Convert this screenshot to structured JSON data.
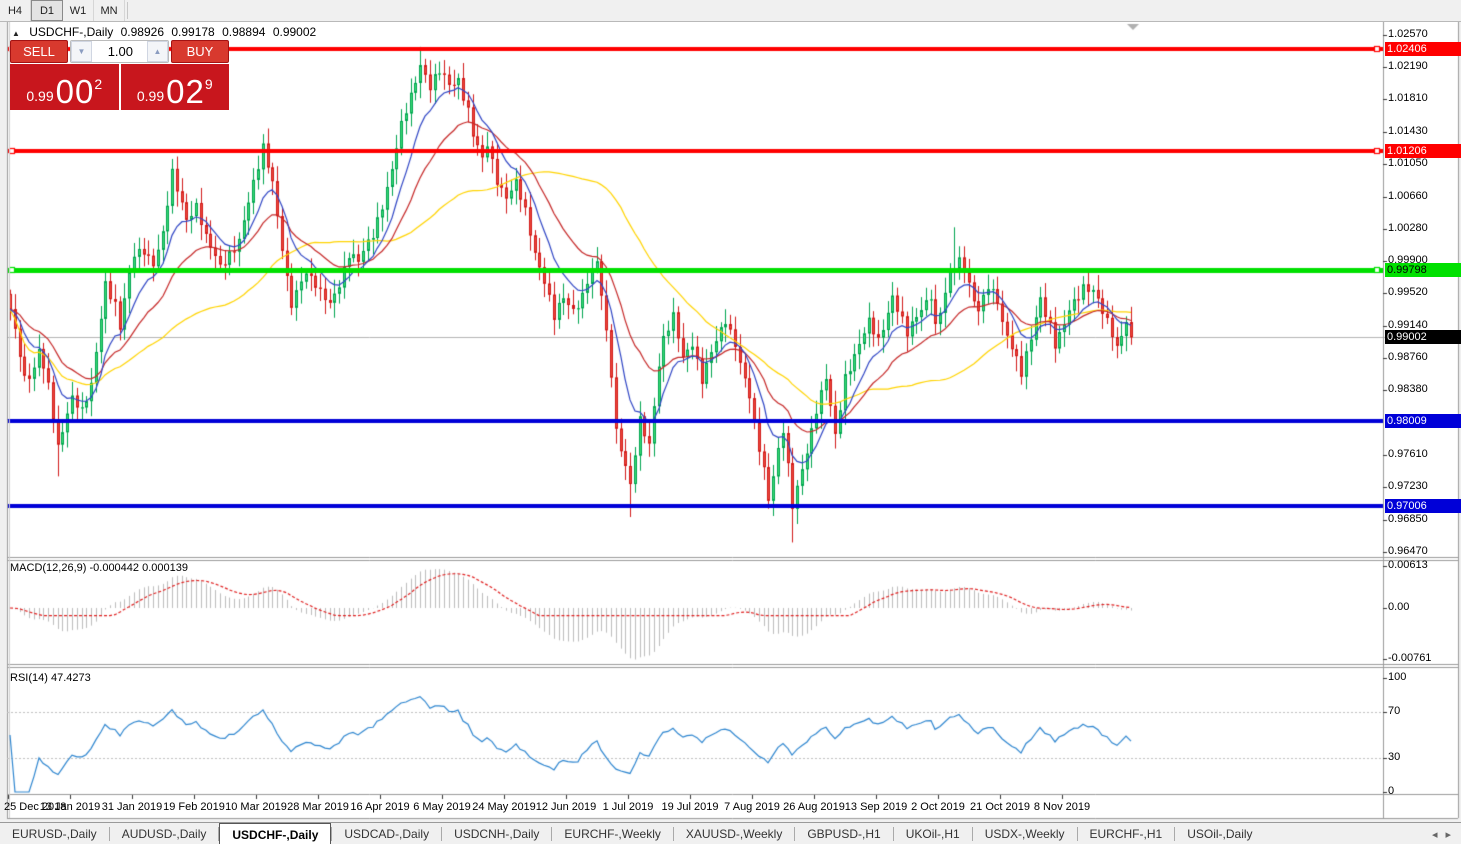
{
  "toolbar": {
    "timeframes": [
      {
        "label": "H4",
        "active": false
      },
      {
        "label": "D1",
        "active": true
      },
      {
        "label": "W1",
        "active": false
      },
      {
        "label": "MN",
        "active": false
      }
    ]
  },
  "icons": {
    "collapse": "▲",
    "spinner_down": "▼",
    "spinner_up": "▲",
    "tab_scroll_left": "◂",
    "tab_scroll_right": "▸",
    "chart_shift": "▼"
  },
  "chart_header": {
    "title": "USDCHF-,Daily",
    "open": "0.98926",
    "high": "0.99178",
    "low": "0.98894",
    "close": "0.99002"
  },
  "trade_panel": {
    "sell_label": "SELL",
    "buy_label": "BUY",
    "volume": "1.00",
    "sell_price_small": "0.99",
    "sell_price_big": "00",
    "sell_price_sup": "2",
    "buy_price_small": "0.99",
    "buy_price_big": "02",
    "buy_price_sup": "9"
  },
  "price_axis": {
    "ticks": [
      "1.02570",
      "1.02190",
      "1.01810",
      "1.01430",
      "1.01050",
      "1.00660",
      "1.00280",
      "0.99900",
      "0.99520",
      "0.99140",
      "0.98760",
      "0.98380",
      "0.97610",
      "0.97230",
      "0.96850",
      "0.96470"
    ],
    "levels": [
      {
        "value": "1.02406",
        "price": 1.02406,
        "bg": "#ff0000",
        "fg": "#ffffff"
      },
      {
        "value": "1.01206",
        "price": 1.01206,
        "bg": "#ff0000",
        "fg": "#ffffff"
      },
      {
        "value": "0.99798",
        "price": 0.99798,
        "bg": "#00e000",
        "fg": "#000000"
      },
      {
        "value": "0.98009",
        "price": 0.98009,
        "bg": "#0000d8",
        "fg": "#ffffff"
      },
      {
        "value": "0.97006",
        "price": 0.97006,
        "bg": "#0000d8",
        "fg": "#ffffff"
      }
    ],
    "current": {
      "value": "0.99002",
      "price": 0.99002,
      "bg": "#000000",
      "fg": "#ffffff"
    }
  },
  "indicators": {
    "macd": {
      "name": "MACD(12,26,9)",
      "values": "-0.000442 0.000139",
      "axis_max": "0.00613",
      "axis_zero": "0.00",
      "axis_min": "-0.00761"
    },
    "rsi": {
      "name": "RSI(14)",
      "value": "47.4273",
      "axis": [
        "100",
        "70",
        "30",
        "0"
      ],
      "level_high": 70,
      "level_low": 30
    }
  },
  "date_axis": [
    "25 Dec 2018",
    "13 Jan 2019",
    "31 Jan 2019",
    "19 Feb 2019",
    "10 Mar 2019",
    "28 Mar 2019",
    "16 Apr 2019",
    "6 May 2019",
    "24 May 2019",
    "12 Jun 2019",
    "1 Jul 2019",
    "19 Jul 2019",
    "7 Aug 2019",
    "26 Aug 2019",
    "13 Sep 2019",
    "2 Oct 2019",
    "21 Oct 2019",
    "8 Nov 2019"
  ],
  "tabs": {
    "items": [
      {
        "label": "EURUSD-,Daily",
        "active": false
      },
      {
        "label": "AUDUSD-,Daily",
        "active": false
      },
      {
        "label": "USDCHF-,Daily",
        "active": true
      },
      {
        "label": "USDCAD-,Daily",
        "active": false
      },
      {
        "label": "USDCNH-,Daily",
        "active": false
      },
      {
        "label": "EURCHF-,Weekly",
        "active": false
      },
      {
        "label": "XAUUSD-,Weekly",
        "active": false
      },
      {
        "label": "GBPUSD-,H1",
        "active": false
      },
      {
        "label": "UKOil-,H1",
        "active": false
      },
      {
        "label": "USDX-,Weekly",
        "active": false
      },
      {
        "label": "EURCHF-,H1",
        "active": false
      },
      {
        "label": "USOil-,Daily",
        "active": false
      }
    ]
  },
  "chart_data": {
    "type": "candlestick",
    "symbol": "USDCHF",
    "timeframe": "Daily",
    "last_bar": {
      "open": 0.98926,
      "high": 0.99178,
      "low": 0.98894,
      "close": 0.99002
    },
    "y_range": {
      "top": 1.027,
      "bottom": 0.9642
    },
    "candle_count": 236,
    "colors": {
      "up_fill": "#3ddc74",
      "up_border": "#00a550",
      "down_fill": "#ed4a3c",
      "down_border": "#d21a1a",
      "ma_fast": "#2f45c5",
      "ma_mid": "#c62828",
      "ma_slow": "#ffd400",
      "bid_line": "#b4b4b4",
      "macd_hist": "#bdbdbd",
      "macd_signal": "#e02020",
      "rsi_line": "#2e86d0",
      "rsi_levels": "#c0c0c0",
      "level_red": "#ff0000",
      "level_green": "#00e000",
      "level_blue": "#0000d8"
    },
    "horizontal_lines": [
      {
        "price": 1.02406,
        "color": "#ff0000",
        "width": 4,
        "selected": true
      },
      {
        "price": 1.01206,
        "color": "#ff0000",
        "width": 4,
        "selected": true
      },
      {
        "price": 0.99798,
        "color": "#00e000",
        "width": 5,
        "selected": true
      },
      {
        "price": 0.98009,
        "color": "#0000d8",
        "width": 4,
        "selected": false
      },
      {
        "price": 0.97006,
        "color": "#0000d8",
        "width": 4,
        "selected": false
      }
    ],
    "moving_averages": [
      {
        "type": "ema",
        "period": 9,
        "color": "#2f45c5"
      },
      {
        "type": "ema",
        "period": 21,
        "color": "#c62828"
      },
      {
        "type": "sma",
        "period": 45,
        "color": "#ffd400"
      }
    ],
    "macd_settings": {
      "fast": 12,
      "slow": 26,
      "signal": 9,
      "main": -0.000442,
      "signal_value": 0.000139
    },
    "rsi_settings": {
      "period": 14,
      "value": 47.4273
    },
    "close_waypoints": [
      [
        0,
        0.993
      ],
      [
        2,
        0.988
      ],
      [
        3,
        0.9852
      ],
      [
        5,
        0.9865
      ],
      [
        6,
        0.9888
      ],
      [
        8,
        0.984
      ],
      [
        10,
        0.9768
      ],
      [
        11,
        0.9792
      ],
      [
        13,
        0.9833
      ],
      [
        15,
        0.9812
      ],
      [
        17,
        0.984
      ],
      [
        20,
        0.9966
      ],
      [
        22,
        0.994
      ],
      [
        23,
        0.9912
      ],
      [
        25,
        0.9972
      ],
      [
        26,
        0.9996
      ],
      [
        28,
        1.0005
      ],
      [
        30,
        0.9988
      ],
      [
        32,
        1.002
      ],
      [
        34,
        1.0092
      ],
      [
        36,
        1.006
      ],
      [
        37,
        1.0042
      ],
      [
        39,
        1.0055
      ],
      [
        41,
        1.0015
      ],
      [
        44,
        0.9986
      ],
      [
        46,
        1.0
      ],
      [
        48,
        1.0012
      ],
      [
        50,
        1.0058
      ],
      [
        53,
        1.0128
      ],
      [
        55,
        1.0085
      ],
      [
        56,
        1.004
      ],
      [
        58,
        0.9965
      ],
      [
        59,
        0.9938
      ],
      [
        61,
        0.997
      ],
      [
        62,
        0.998
      ],
      [
        64,
        0.9962
      ],
      [
        65,
        0.995
      ],
      [
        67,
        0.9938
      ],
      [
        69,
        0.9965
      ],
      [
        71,
        1.0
      ],
      [
        73,
        0.9988
      ],
      [
        76,
        1.0022
      ],
      [
        78,
        1.0058
      ],
      [
        80,
        1.0098
      ],
      [
        82,
        1.0148
      ],
      [
        84,
        1.0185
      ],
      [
        86,
        1.0225
      ],
      [
        88,
        1.0196
      ],
      [
        90,
        1.0212
      ],
      [
        92,
        1.0198
      ],
      [
        94,
        1.0206
      ],
      [
        96,
        1.0168
      ],
      [
        97,
        1.0138
      ],
      [
        99,
        1.0108
      ],
      [
        100,
        1.0128
      ],
      [
        102,
        1.0088
      ],
      [
        104,
        1.0066
      ],
      [
        106,
        1.008
      ],
      [
        108,
        1.0048
      ],
      [
        110,
        1.0002
      ],
      [
        112,
        0.9968
      ],
      [
        114,
        0.9922
      ],
      [
        116,
        0.9946
      ],
      [
        118,
        0.9934
      ],
      [
        120,
        0.995
      ],
      [
        121,
        0.9966
      ],
      [
        123,
        0.9986
      ],
      [
        124,
        0.995
      ],
      [
        126,
        0.986
      ],
      [
        127,
        0.9792
      ],
      [
        129,
        0.9748
      ],
      [
        130,
        0.9722
      ],
      [
        132,
        0.98
      ],
      [
        134,
        0.9775
      ],
      [
        136,
        0.987
      ],
      [
        137,
        0.9898
      ],
      [
        139,
        0.9922
      ],
      [
        141,
        0.9876
      ],
      [
        143,
        0.9896
      ],
      [
        145,
        0.985
      ],
      [
        147,
        0.988
      ],
      [
        149,
        0.9908
      ],
      [
        150,
        0.9922
      ],
      [
        152,
        0.9895
      ],
      [
        153,
        0.987
      ],
      [
        155,
        0.9828
      ],
      [
        156,
        0.9792
      ],
      [
        158,
        0.9745
      ],
      [
        159,
        0.9712
      ],
      [
        161,
        0.9768
      ],
      [
        162,
        0.979
      ],
      [
        164,
        0.9698
      ],
      [
        166,
        0.9745
      ],
      [
        168,
        0.9792
      ],
      [
        169,
        0.9816
      ],
      [
        171,
        0.985
      ],
      [
        173,
        0.9782
      ],
      [
        175,
        0.9855
      ],
      [
        177,
        0.988
      ],
      [
        180,
        0.9916
      ],
      [
        182,
        0.9896
      ],
      [
        185,
        0.995
      ],
      [
        188,
        0.9902
      ],
      [
        191,
        0.9936
      ],
      [
        193,
        0.9952
      ],
      [
        194,
        0.9912
      ],
      [
        196,
        0.9948
      ],
      [
        197,
        0.9975
      ],
      [
        199,
        0.9992
      ],
      [
        200,
        0.9984
      ],
      [
        202,
        0.9945
      ],
      [
        203,
        0.993
      ],
      [
        205,
        0.9958
      ],
      [
        207,
        0.9945
      ],
      [
        208,
        0.992
      ],
      [
        210,
        0.989
      ],
      [
        212,
        0.9855
      ],
      [
        214,
        0.9898
      ],
      [
        215,
        0.9925
      ],
      [
        216,
        0.9948
      ],
      [
        218,
        0.9915
      ],
      [
        219,
        0.989
      ],
      [
        221,
        0.9912
      ],
      [
        222,
        0.9932
      ],
      [
        224,
        0.9952
      ],
      [
        225,
        0.9962
      ],
      [
        227,
        0.9955
      ],
      [
        229,
        0.9928
      ],
      [
        231,
        0.9905
      ],
      [
        232,
        0.989
      ],
      [
        234,
        0.9922
      ],
      [
        235,
        0.99002
      ]
    ],
    "spikes": [
      {
        "i": 10,
        "low": 0.9736
      },
      {
        "i": 53,
        "high": 1.014
      },
      {
        "i": 86,
        "high": 1.0243
      },
      {
        "i": 130,
        "low": 0.9688
      },
      {
        "i": 164,
        "low": 0.9658
      },
      {
        "i": 198,
        "high": 1.003
      }
    ]
  }
}
